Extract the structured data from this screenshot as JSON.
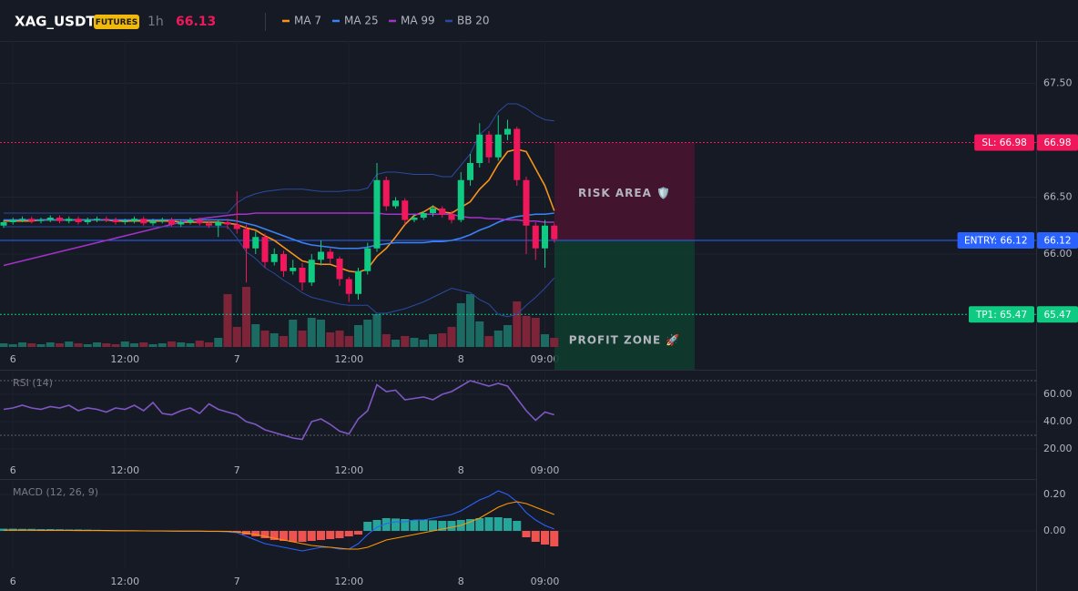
{
  "chart_data": [
    {
      "type": "candlestick",
      "title": "XAG_USDT",
      "badge": "FUTURES",
      "interval": "1h",
      "last_price": 66.13,
      "last_color": "#f0185a",
      "up_color": "#0ecb81",
      "down_color": "#f0185a",
      "volume_up_color": "#1c6b62",
      "volume_down_color": "#7d2438",
      "categories": [
        null,
        "6",
        null,
        null,
        null,
        null,
        null,
        null,
        null,
        null,
        null,
        null,
        null,
        "12:00",
        null,
        null,
        null,
        null,
        null,
        null,
        null,
        null,
        null,
        null,
        null,
        "7",
        null,
        null,
        null,
        null,
        null,
        null,
        null,
        null,
        null,
        null,
        null,
        "12:00",
        null,
        null,
        null,
        null,
        null,
        null,
        null,
        null,
        null,
        null,
        null,
        "8",
        null,
        null,
        null,
        null,
        null,
        null,
        null,
        null,
        "09:00",
        null
      ],
      "open": [
        66.25,
        66.28,
        66.3,
        66.31,
        66.29,
        66.3,
        66.32,
        66.29,
        66.31,
        66.28,
        66.3,
        66.31,
        66.3,
        66.28,
        66.29,
        66.31,
        66.27,
        66.29,
        66.3,
        66.26,
        66.28,
        66.3,
        66.27,
        66.25,
        66.28,
        66.26,
        66.22,
        66.05,
        66.15,
        65.93,
        66.0,
        65.85,
        65.88,
        65.75,
        65.95,
        66.02,
        65.96,
        65.78,
        65.65,
        65.85,
        66.05,
        66.65,
        66.42,
        66.47,
        66.3,
        66.32,
        66.36,
        66.4,
        66.35,
        66.3,
        66.65,
        66.8,
        67.05,
        66.85,
        67.05,
        67.1,
        66.65,
        66.25,
        66.05,
        66.25
      ],
      "high": [
        66.3,
        66.32,
        66.33,
        66.33,
        66.32,
        66.34,
        66.34,
        66.33,
        66.33,
        66.32,
        66.33,
        66.33,
        66.32,
        66.31,
        66.33,
        66.33,
        66.31,
        66.32,
        66.32,
        66.3,
        66.32,
        66.32,
        66.29,
        66.3,
        66.31,
        66.55,
        66.26,
        66.2,
        66.18,
        66.05,
        66.03,
        65.95,
        65.92,
        66.0,
        66.12,
        66.05,
        65.98,
        65.8,
        65.88,
        66.1,
        66.8,
        66.68,
        66.5,
        66.49,
        66.35,
        66.38,
        66.43,
        66.42,
        66.38,
        66.72,
        66.88,
        67.15,
        67.08,
        67.22,
        67.18,
        67.12,
        66.68,
        66.28,
        66.3,
        66.27
      ],
      "low": [
        66.23,
        66.26,
        66.28,
        66.27,
        66.27,
        66.28,
        66.27,
        66.27,
        66.26,
        66.26,
        66.28,
        66.28,
        66.26,
        66.26,
        66.27,
        66.25,
        66.25,
        66.27,
        66.24,
        66.24,
        66.26,
        66.25,
        66.23,
        66.15,
        66.22,
        66.18,
        65.75,
        66.0,
        65.88,
        65.9,
        65.8,
        65.82,
        65.68,
        65.72,
        65.9,
        65.92,
        65.72,
        65.58,
        65.6,
        65.82,
        66.02,
        66.38,
        66.4,
        66.26,
        66.28,
        66.3,
        66.33,
        66.32,
        66.27,
        66.28,
        66.6,
        66.76,
        66.8,
        66.82,
        67.0,
        66.6,
        66.0,
        65.95,
        65.88,
        66.1
      ],
      "close": [
        66.28,
        66.3,
        66.31,
        66.29,
        66.3,
        66.32,
        66.29,
        66.31,
        66.28,
        66.3,
        66.31,
        66.3,
        66.28,
        66.29,
        66.31,
        66.27,
        66.29,
        66.3,
        66.26,
        66.28,
        66.3,
        66.27,
        66.25,
        66.28,
        66.26,
        66.22,
        66.05,
        66.15,
        65.93,
        66.0,
        65.85,
        65.88,
        65.75,
        65.95,
        66.02,
        65.96,
        65.78,
        65.65,
        65.85,
        66.05,
        66.65,
        66.42,
        66.47,
        66.3,
        66.32,
        66.36,
        66.4,
        66.35,
        66.3,
        66.65,
        66.8,
        67.05,
        66.85,
        67.05,
        67.1,
        66.65,
        66.25,
        66.05,
        66.25,
        66.13
      ],
      "volume": [
        4,
        3,
        5,
        4,
        3,
        5,
        4,
        6,
        4,
        3,
        5,
        4,
        3,
        6,
        4,
        5,
        3,
        4,
        6,
        5,
        4,
        7,
        5,
        10,
        58,
        22,
        66,
        25,
        18,
        15,
        12,
        30,
        18,
        32,
        30,
        16,
        18,
        12,
        24,
        30,
        36,
        14,
        8,
        12,
        10,
        8,
        14,
        15,
        22,
        48,
        58,
        28,
        12,
        18,
        24,
        50,
        34,
        32,
        14,
        10
      ],
      "volume_ylim": [
        0,
        100
      ],
      "ylim": [
        65.184,
        67.872
      ],
      "yticks": [
        {
          "value": 67.5,
          "label": "67.50"
        },
        {
          "value": 66.5,
          "label": "66.50"
        },
        {
          "value": 66,
          "label": "66.00"
        }
      ],
      "overlays": [
        {
          "name": "MA 7",
          "color": "#f7931a",
          "values": [
            66.29,
            66.29,
            66.29,
            66.29,
            66.3,
            66.3,
            66.3,
            66.3,
            66.3,
            66.3,
            66.3,
            66.3,
            66.29,
            66.29,
            66.29,
            66.29,
            66.29,
            66.29,
            66.29,
            66.28,
            66.28,
            66.28,
            66.28,
            66.28,
            66.27,
            66.26,
            66.23,
            66.21,
            66.16,
            66.12,
            66.06,
            66.0,
            65.94,
            65.92,
            65.91,
            65.91,
            65.88,
            65.85,
            65.84,
            65.87,
            65.98,
            66.05,
            66.15,
            66.26,
            66.34,
            66.37,
            66.42,
            66.37,
            66.36,
            66.41,
            66.46,
            66.57,
            66.65,
            66.79,
            66.9,
            66.92,
            66.9,
            66.75,
            66.6,
            66.38
          ]
        },
        {
          "name": "MA 25",
          "color": "#3b82f6",
          "values": [
            66.3,
            66.3,
            66.3,
            66.3,
            66.3,
            66.3,
            66.3,
            66.3,
            66.3,
            66.3,
            66.3,
            66.3,
            66.3,
            66.3,
            66.3,
            66.3,
            66.3,
            66.3,
            66.3,
            66.3,
            66.3,
            66.3,
            66.3,
            66.3,
            66.3,
            66.29,
            66.27,
            66.25,
            66.22,
            66.19,
            66.16,
            66.13,
            66.1,
            66.08,
            66.07,
            66.06,
            66.05,
            66.05,
            66.05,
            66.06,
            66.08,
            66.09,
            66.1,
            66.1,
            66.1,
            66.1,
            66.11,
            66.11,
            66.12,
            66.14,
            66.17,
            66.21,
            66.24,
            66.28,
            66.31,
            66.33,
            66.34,
            66.35,
            66.35,
            66.36
          ]
        },
        {
          "name": "MA 99",
          "color": "#a332c7",
          "values": [
            65.9,
            65.92,
            65.94,
            65.96,
            65.98,
            66.0,
            66.02,
            66.04,
            66.06,
            66.08,
            66.1,
            66.12,
            66.14,
            66.16,
            66.18,
            66.2,
            66.22,
            66.24,
            66.26,
            66.28,
            66.3,
            66.31,
            66.32,
            66.33,
            66.34,
            66.35,
            66.35,
            66.36,
            66.36,
            66.36,
            66.36,
            66.36,
            66.36,
            66.36,
            66.36,
            66.36,
            66.36,
            66.36,
            66.36,
            66.36,
            66.36,
            66.35,
            66.35,
            66.35,
            66.35,
            66.35,
            66.35,
            66.35,
            66.35,
            66.33,
            66.32,
            66.32,
            66.31,
            66.31,
            66.3,
            66.3,
            66.29,
            66.29,
            66.28,
            66.28
          ]
        },
        {
          "name": "BB 20",
          "color": "#2b4aa0",
          "upper": [
            66.36,
            66.36,
            66.36,
            66.36,
            66.36,
            66.36,
            66.36,
            66.36,
            66.36,
            66.36,
            66.36,
            66.36,
            66.36,
            66.36,
            66.36,
            66.36,
            66.36,
            66.36,
            66.36,
            66.36,
            66.36,
            66.36,
            66.36,
            66.36,
            66.36,
            66.45,
            66.5,
            66.53,
            66.55,
            66.56,
            66.57,
            66.57,
            66.57,
            66.56,
            66.55,
            66.55,
            66.55,
            66.56,
            66.56,
            66.58,
            66.7,
            66.72,
            66.72,
            66.71,
            66.7,
            66.7,
            66.7,
            66.68,
            66.68,
            66.78,
            66.88,
            67.05,
            67.12,
            67.25,
            67.32,
            67.32,
            67.28,
            67.22,
            67.18,
            67.17
          ],
          "lower": [
            66.24,
            66.24,
            66.24,
            66.24,
            66.24,
            66.24,
            66.24,
            66.24,
            66.24,
            66.24,
            66.24,
            66.24,
            66.24,
            66.24,
            66.24,
            66.24,
            66.24,
            66.24,
            66.24,
            66.24,
            66.24,
            66.24,
            66.24,
            66.24,
            66.24,
            66.14,
            66.02,
            65.96,
            65.88,
            65.83,
            65.77,
            65.72,
            65.66,
            65.62,
            65.6,
            65.58,
            65.56,
            65.55,
            65.55,
            65.55,
            65.48,
            65.48,
            65.5,
            65.52,
            65.55,
            65.58,
            65.62,
            65.66,
            65.7,
            65.68,
            65.66,
            65.6,
            65.56,
            65.47,
            65.45,
            65.47,
            65.55,
            65.62,
            65.7,
            65.79
          ]
        }
      ],
      "levels": [
        {
          "label": "SL: 66.98",
          "value": 66.98,
          "color": "#f0185a",
          "line": "dotted"
        },
        {
          "label": "ENTRY: 66.12",
          "value": 66.12,
          "color": "#2962ff",
          "line": "solid"
        },
        {
          "label": "TP1: 65.47",
          "value": 65.47,
          "color": "#0ecb81",
          "line": "dotted"
        }
      ],
      "zones": {
        "risk": "RISK AREA 🛡️",
        "profit": "PROFIT ZONE 🚀"
      }
    },
    {
      "type": "line",
      "title": "RSI (14)",
      "color": "#7e57c2",
      "categories": [
        null,
        "6",
        null,
        null,
        null,
        null,
        null,
        null,
        null,
        null,
        null,
        null,
        null,
        "12:00",
        null,
        null,
        null,
        null,
        null,
        null,
        null,
        null,
        null,
        null,
        null,
        "7",
        null,
        null,
        null,
        null,
        null,
        null,
        null,
        null,
        null,
        null,
        null,
        "12:00",
        null,
        null,
        null,
        null,
        null,
        null,
        null,
        null,
        null,
        null,
        null,
        "8",
        null,
        null,
        null,
        null,
        null,
        null,
        null,
        null,
        "09:00",
        null
      ],
      "values": [
        49,
        50,
        52,
        50,
        49,
        51,
        50,
        52,
        48,
        50,
        49,
        47,
        50,
        49,
        52,
        48,
        54,
        46,
        45,
        48,
        50,
        46,
        53,
        49,
        47,
        45,
        40,
        38,
        34,
        32,
        30,
        28,
        27,
        40,
        42,
        38,
        33,
        31,
        42,
        48,
        67,
        62,
        63,
        56,
        57,
        58,
        56,
        60,
        62,
        66,
        70,
        68,
        66,
        68,
        66,
        57,
        48,
        41,
        47,
        45
      ],
      "ylim": [
        13.33,
        76.67
      ],
      "yticks": [
        {
          "value": 60,
          "label": "60.00"
        },
        {
          "value": 40,
          "label": "40.00"
        },
        {
          "value": 20,
          "label": "20.00"
        }
      ],
      "bands": [
        70,
        30
      ]
    },
    {
      "type": "macd",
      "title": "MACD (12, 26, 9)",
      "up_color": "#26a69a",
      "down_color": "#ef5350",
      "categories": [
        null,
        "6",
        null,
        null,
        null,
        null,
        null,
        null,
        null,
        null,
        null,
        null,
        null,
        "12:00",
        null,
        null,
        null,
        null,
        null,
        null,
        null,
        null,
        null,
        null,
        null,
        "7",
        null,
        null,
        null,
        null,
        null,
        null,
        null,
        null,
        null,
        null,
        null,
        "12:00",
        null,
        null,
        null,
        null,
        null,
        null,
        null,
        null,
        null,
        null,
        null,
        "8",
        null,
        null,
        null,
        null,
        null,
        null,
        null,
        null,
        "09:00",
        null
      ],
      "histogram": [
        0.012,
        0.012,
        0.011,
        0.011,
        0.01,
        0.01,
        0.009,
        0.008,
        0.008,
        0.007,
        0.006,
        0.004,
        0.003,
        0.002,
        0.002,
        0.001,
        0.001,
        0,
        0,
        -0.001,
        -0.001,
        -0.002,
        -0.002,
        -0.003,
        -0.004,
        -0.006,
        -0.02,
        -0.03,
        -0.04,
        -0.05,
        -0.055,
        -0.06,
        -0.06,
        -0.055,
        -0.05,
        -0.045,
        -0.04,
        -0.03,
        -0.02,
        0.05,
        0.06,
        0.07,
        0.068,
        0.065,
        0.06,
        0.06,
        0.058,
        0.055,
        0.055,
        0.06,
        0.065,
        0.07,
        0.075,
        0.075,
        0.07,
        0.055,
        -0.035,
        -0.06,
        -0.075,
        -0.085
      ],
      "macd": {
        "color": "#2962ff",
        "values": [
          0.005,
          0.005,
          0.004,
          0.004,
          0.004,
          0.003,
          0.003,
          0.003,
          0.002,
          0.002,
          0.002,
          0.001,
          0.001,
          0,
          0,
          0,
          -0.001,
          -0.001,
          -0.001,
          -0.002,
          -0.002,
          -0.002,
          -0.003,
          -0.003,
          -0.005,
          -0.01,
          -0.03,
          -0.05,
          -0.07,
          -0.08,
          -0.09,
          -0.1,
          -0.11,
          -0.1,
          -0.09,
          -0.09,
          -0.1,
          -0.1,
          -0.07,
          -0.02,
          0.02,
          0.04,
          0.05,
          0.05,
          0.06,
          0.06,
          0.07,
          0.08,
          0.09,
          0.11,
          0.14,
          0.17,
          0.19,
          0.22,
          0.2,
          0.16,
          0.1,
          0.06,
          0.03,
          0.01
        ]
      },
      "signal": {
        "color": "#ff9800",
        "values": [
          0.004,
          0.004,
          0.004,
          0.004,
          0.003,
          0.003,
          0.003,
          0.003,
          0.002,
          0.002,
          0.002,
          0.002,
          0.001,
          0.001,
          0.001,
          0,
          0,
          0,
          -0.001,
          -0.001,
          -0.001,
          -0.001,
          -0.002,
          -0.002,
          -0.003,
          -0.006,
          -0.012,
          -0.02,
          -0.03,
          -0.04,
          -0.05,
          -0.06,
          -0.07,
          -0.08,
          -0.085,
          -0.09,
          -0.095,
          -0.1,
          -0.1,
          -0.09,
          -0.07,
          -0.05,
          -0.04,
          -0.03,
          -0.02,
          -0.01,
          0,
          0.01,
          0.02,
          0.03,
          0.05,
          0.07,
          0.1,
          0.13,
          0.15,
          0.16,
          0.15,
          0.13,
          0.11,
          0.09
        ]
      },
      "ylim": [
        -0.21,
        0.275
      ],
      "yticks": [
        {
          "value": 0.2,
          "label": "0.20"
        },
        {
          "value": 0,
          "label": "0.00"
        }
      ]
    }
  ]
}
